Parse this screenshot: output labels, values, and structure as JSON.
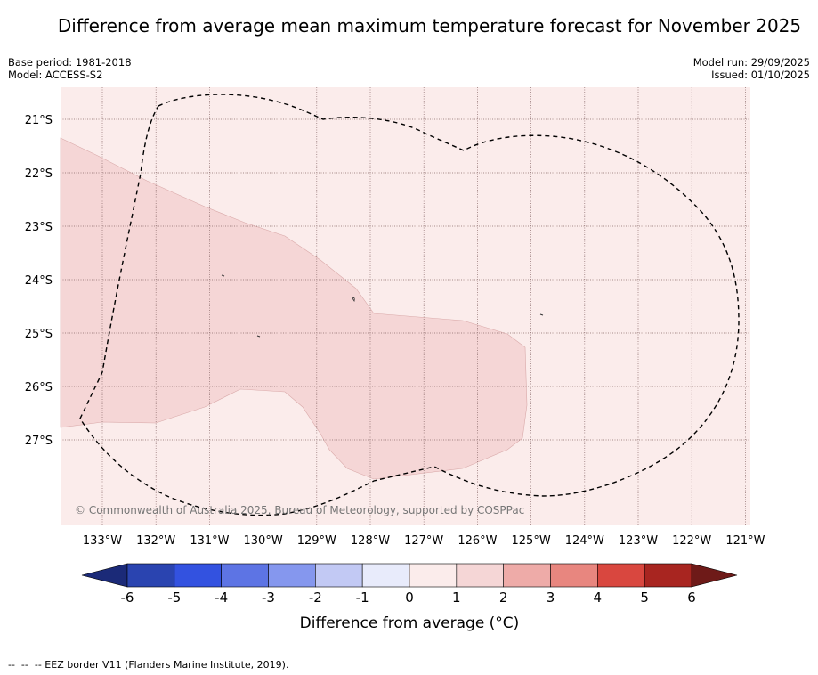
{
  "title": "Difference from average mean maximum temperature forecast for November 2025",
  "base_period": "Base period: 1981-2018",
  "model": "Model: ACCESS-S2",
  "model_run": "Model run: 29/09/2025",
  "issued": "Issued: 01/10/2025",
  "copyright": "© Commonwealth of Australia 2025, Bureau of Meteorology, supported by COSPPac",
  "lat_labels": [
    "21°S",
    "22°S",
    "23°S",
    "24°S",
    "25°S",
    "26°S",
    "27°S"
  ],
  "lon_labels": [
    "133°W",
    "132°W",
    "131°W",
    "130°W",
    "129°W",
    "128°W",
    "127°W",
    "126°W",
    "125°W",
    "124°W",
    "123°W",
    "122°W",
    "121°W"
  ],
  "colorbar": {
    "title": "Difference from average (°C)",
    "ticks": [
      "-6",
      "-5",
      "-4",
      "-3",
      "-2",
      "-1",
      "0",
      "1",
      "2",
      "3",
      "4",
      "5",
      "6"
    ],
    "colors": [
      "#2a44b0",
      "#3352e0",
      "#5d74e4",
      "#8597ee",
      "#c2c9f4",
      "#e8ebfb",
      "#fbeceb",
      "#f5d6d6",
      "#eeaba8",
      "#e8867f",
      "#d9473f",
      "#a82520"
    ],
    "under_color": "#1b2a78",
    "over_color": "#6e1a18"
  },
  "map_colors": {
    "background_class": "#fbeceb",
    "warm_class": "#f5d6d6"
  },
  "legend_footnote": "--  --  -- EEZ border V11 (Flanders Marine Institute, 2019)."
}
